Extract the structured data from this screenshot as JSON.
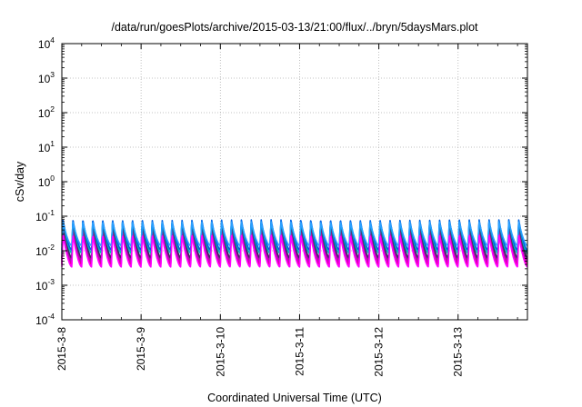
{
  "chart_data": {
    "type": "line",
    "title": "/data/run/goesPlots/archive/2015-03-13/21:00/flux/../bryn/5daysMars.plot",
    "xlabel": "Coordinated Universal Time (UTC)",
    "ylabel": "cSv/day",
    "y_scale": "log",
    "ylim": [
      0.0001,
      10000
    ],
    "y_ticks": [
      {
        "base": "10",
        "exp": "-4",
        "value": 0.0001
      },
      {
        "base": "10",
        "exp": "-3",
        "value": 0.001
      },
      {
        "base": "10",
        "exp": "-2",
        "value": 0.01
      },
      {
        "base": "10",
        "exp": "-1",
        "value": 0.1
      },
      {
        "base": "10",
        "exp": "0",
        "value": 1
      },
      {
        "base": "10",
        "exp": "1",
        "value": 10
      },
      {
        "base": "10",
        "exp": "2",
        "value": 100
      },
      {
        "base": "10",
        "exp": "3",
        "value": 1000
      },
      {
        "base": "10",
        "exp": "4",
        "value": 10000
      }
    ],
    "xlim": [
      "2015-03-08 00:00",
      "2015-03-13 21:00"
    ],
    "x_ticks": [
      "2015-3-8",
      "2015-3-9",
      "2015-3-10",
      "2015-3-11",
      "2015-3-12",
      "2015-3-13"
    ],
    "x_tick_dates": [
      "2015-03-08",
      "2015-03-09",
      "2015-03-10",
      "2015-03-11",
      "2015-03-12",
      "2015-03-13"
    ],
    "grid": true,
    "legend": "none",
    "pattern": "periodic sawtooth, about 8 cycles per day",
    "series": [
      {
        "color": "#e8008a",
        "peak": 0.045,
        "trough": 0.004
      },
      {
        "color": "#c400c4",
        "peak": 0.05,
        "trough": 0.0047
      },
      {
        "color": "#9a2a8e",
        "peak": 0.058,
        "trough": 0.0055
      },
      {
        "color": "#3a2a6a",
        "peak": 0.066,
        "trough": 0.0062
      },
      {
        "color": "#00b8b8",
        "peak": 0.073,
        "trough": 0.0085
      },
      {
        "color": "#0060e0",
        "peak": 0.079,
        "trough": 0.0105
      },
      {
        "color": "#2aa0ff",
        "peak": 0.069,
        "trough": 0.014
      },
      {
        "color": "#ff00ff",
        "peak": 0.028,
        "trough": 0.0034
      }
    ]
  }
}
